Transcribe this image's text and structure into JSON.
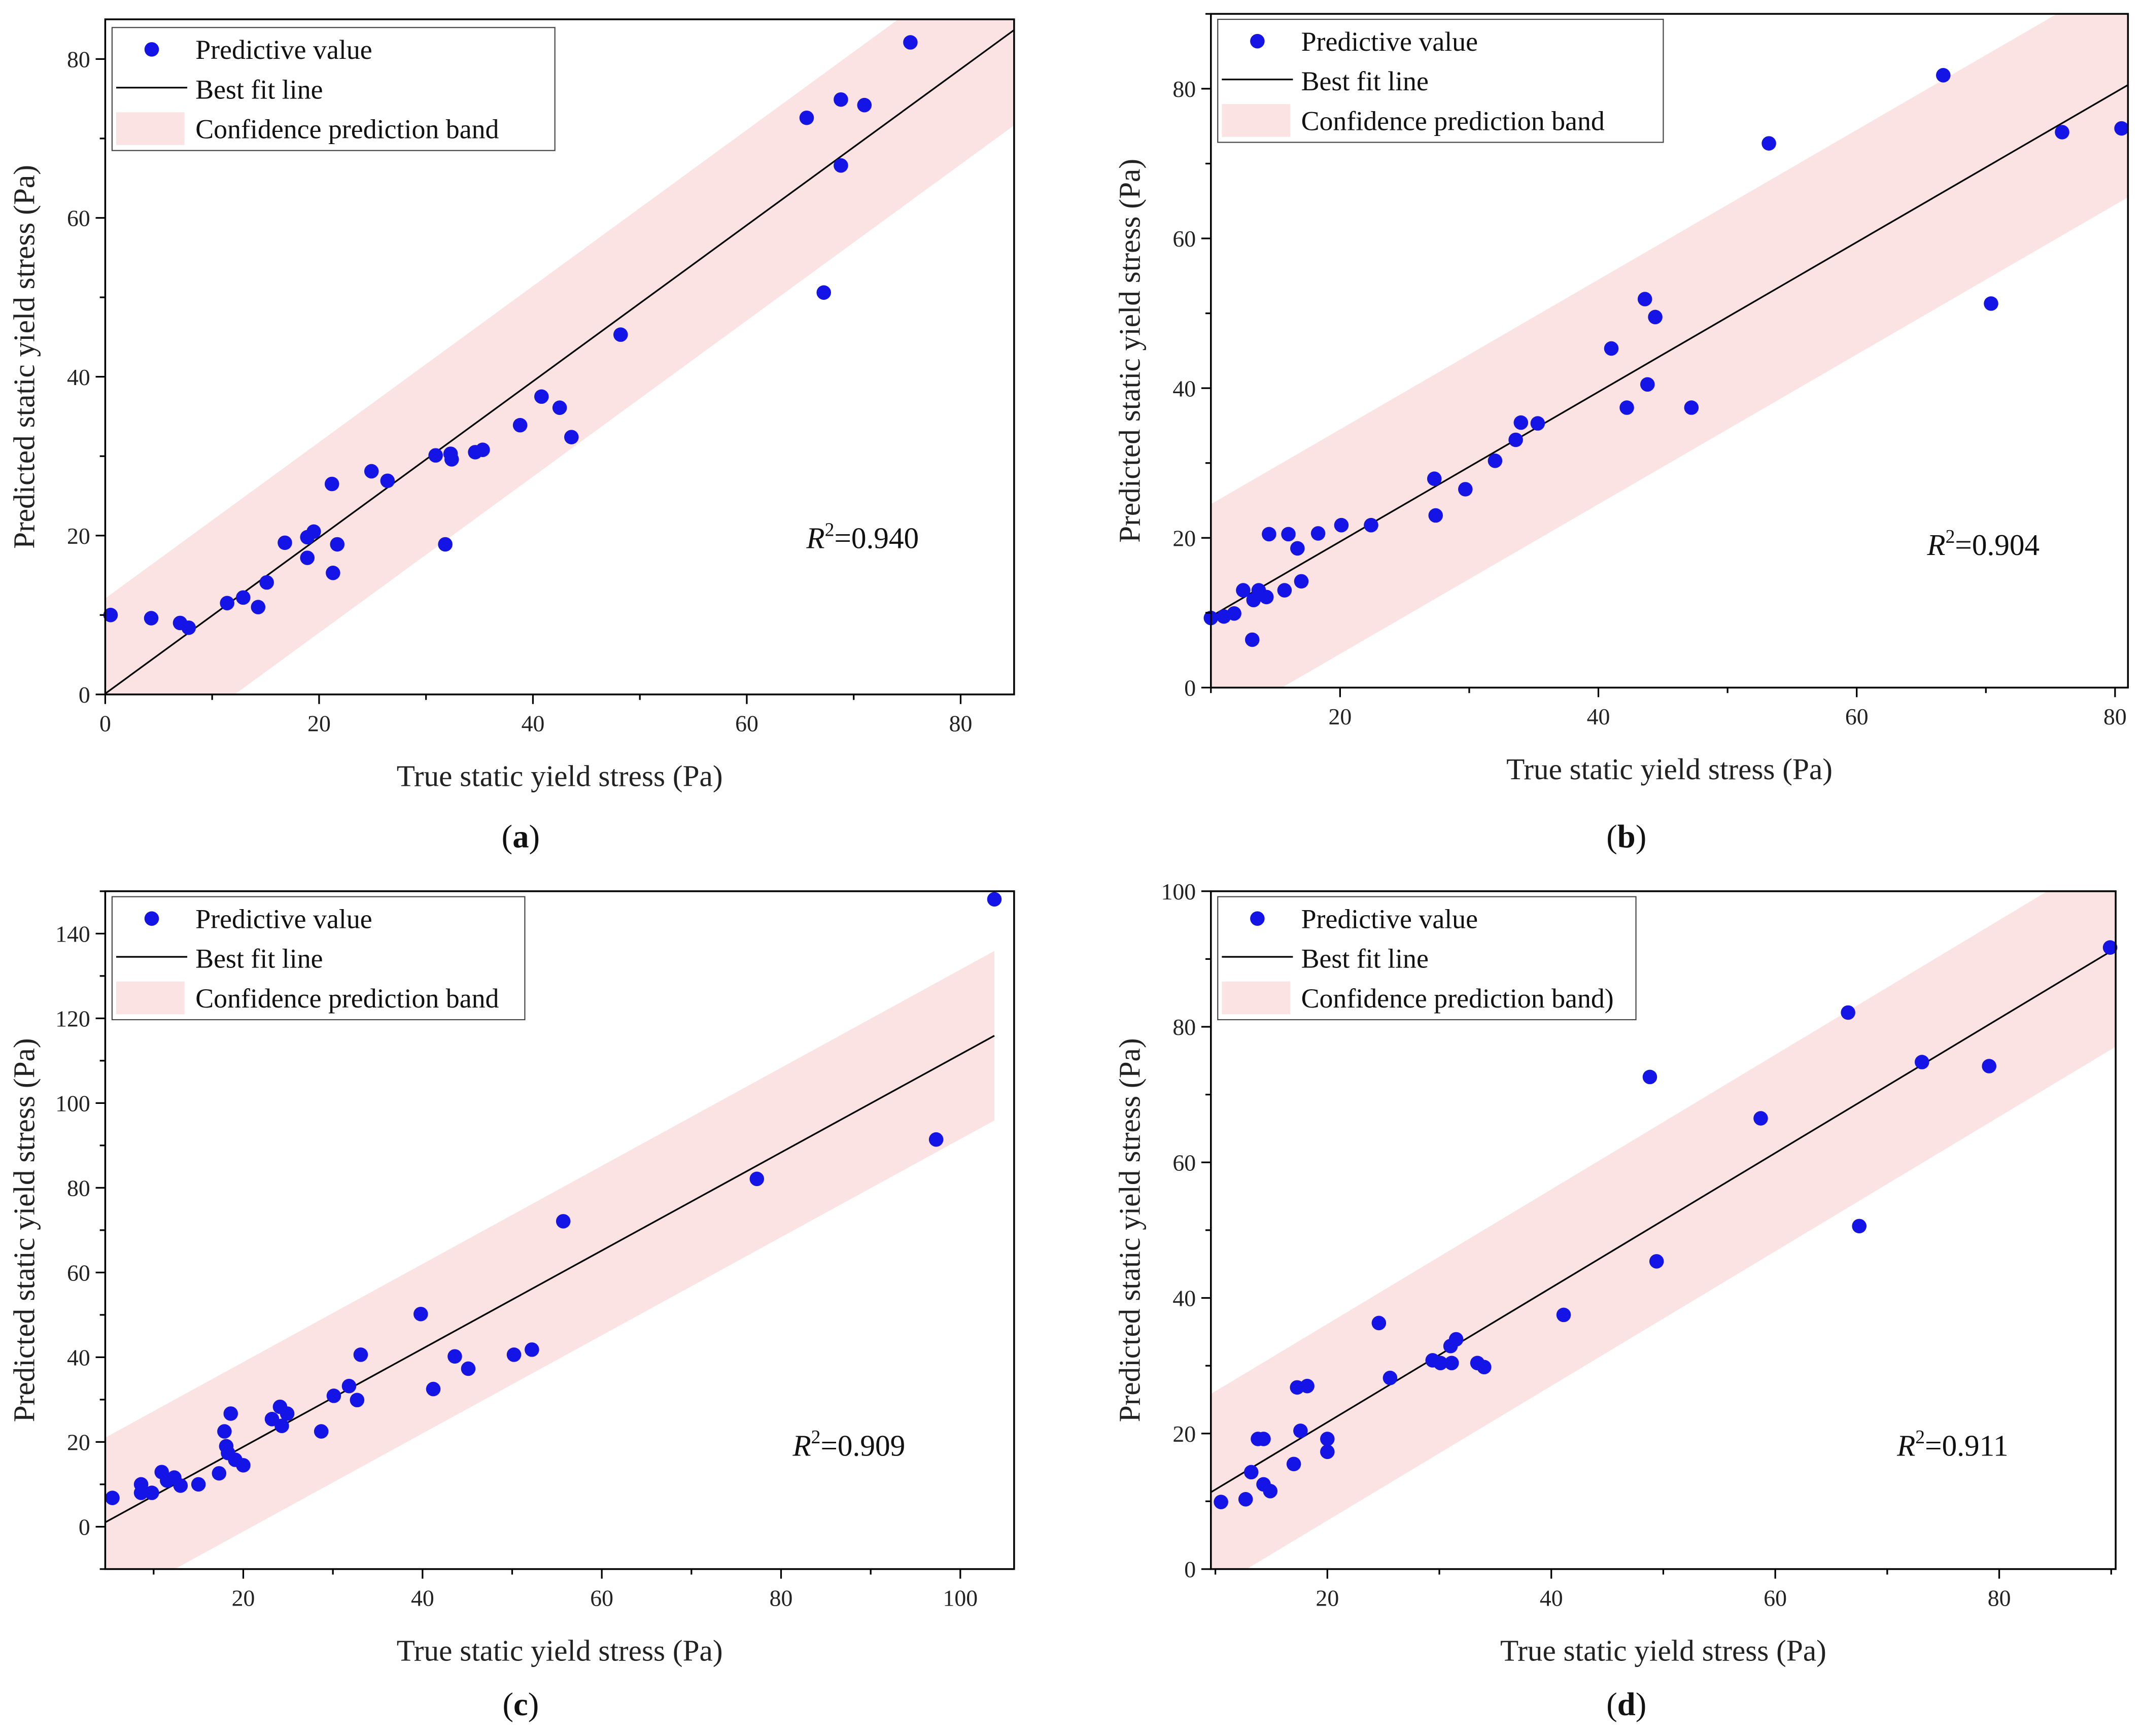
{
  "colors": {
    "point": "#1414e6",
    "line": "#000000",
    "band": "#fce3e3",
    "axis": "#000000"
  },
  "chart_data": [
    {
      "type": "scatter",
      "panel_label": "a",
      "xlabel": "True static yield stress (Pa)",
      "ylabel": "Predicted static yield stress (Pa)",
      "xlim": [
        0,
        85
      ],
      "ylim": [
        0,
        85
      ],
      "xticks": [
        0,
        20,
        40,
        60,
        80
      ],
      "yticks": [
        0,
        20,
        40,
        60,
        80
      ],
      "legend": {
        "placement": "top-left",
        "entries": [
          "Predictive value",
          "Best fit line",
          "Confidence prediction band"
        ]
      },
      "r2_label": "=0.940",
      "fit": {
        "slope": 0.983,
        "intercept": 0.1,
        "band_halfwidth": 12
      },
      "points": [
        [
          0.5,
          10.0
        ],
        [
          4.3,
          9.6
        ],
        [
          7.0,
          9.0
        ],
        [
          7.8,
          8.4
        ],
        [
          11.4,
          11.5
        ],
        [
          12.9,
          12.2
        ],
        [
          14.3,
          11.0
        ],
        [
          15.1,
          14.1
        ],
        [
          16.8,
          19.1
        ],
        [
          18.9,
          17.2
        ],
        [
          18.9,
          19.8
        ],
        [
          19.5,
          20.5
        ],
        [
          21.2,
          26.5
        ],
        [
          21.3,
          15.3
        ],
        [
          21.7,
          18.9
        ],
        [
          24.9,
          28.1
        ],
        [
          26.4,
          26.9
        ],
        [
          30.9,
          30.1
        ],
        [
          32.3,
          30.3
        ],
        [
          32.4,
          29.6
        ],
        [
          31.8,
          18.9
        ],
        [
          34.6,
          30.5
        ],
        [
          35.3,
          30.8
        ],
        [
          38.8,
          33.9
        ],
        [
          40.8,
          37.5
        ],
        [
          42.5,
          36.1
        ],
        [
          43.6,
          32.4
        ],
        [
          48.2,
          45.3
        ],
        [
          65.6,
          72.6
        ],
        [
          67.2,
          50.6
        ],
        [
          68.8,
          74.9
        ],
        [
          68.8,
          66.6
        ],
        [
          71.0,
          74.2
        ],
        [
          75.3,
          82.1
        ]
      ]
    },
    {
      "type": "scatter",
      "panel_label": "b",
      "xlabel": "True static yield stress (Pa)",
      "ylabel": "Predicted static yield stress (Pa)",
      "xlim": [
        10,
        81
      ],
      "ylim": [
        0,
        90
      ],
      "xticks": [
        20,
        40,
        60,
        80
      ],
      "yticks": [
        0,
        20,
        40,
        60,
        80
      ],
      "legend": {
        "placement": "top-left",
        "entries": [
          "Predictive value",
          "Best fit line",
          "Confidence prediction band"
        ]
      },
      "r2_label": "=0.904",
      "fit": {
        "slope": 1.0,
        "intercept": -0.5,
        "band_halfwidth": 15
      },
      "points": [
        [
          10,
          9.3
        ],
        [
          11,
          9.5
        ],
        [
          11.8,
          9.9
        ],
        [
          12.5,
          13.0
        ],
        [
          13.2,
          6.4
        ],
        [
          13.3,
          11.7
        ],
        [
          13.7,
          13.0
        ],
        [
          14.3,
          12.1
        ],
        [
          14.5,
          20.5
        ],
        [
          15.7,
          13.0
        ],
        [
          16.0,
          20.5
        ],
        [
          16.7,
          18.6
        ],
        [
          17.0,
          14.2
        ],
        [
          18.3,
          20.6
        ],
        [
          20.1,
          21.7
        ],
        [
          22.4,
          21.7
        ],
        [
          27.3,
          27.9
        ],
        [
          27.4,
          23.0
        ],
        [
          29.7,
          26.5
        ],
        [
          32.0,
          30.3
        ],
        [
          33.6,
          33.1
        ],
        [
          34.0,
          35.4
        ],
        [
          35.3,
          35.3
        ],
        [
          41.0,
          45.3
        ],
        [
          42.2,
          37.4
        ],
        [
          43.6,
          51.9
        ],
        [
          43.8,
          40.5
        ],
        [
          44.4,
          49.5
        ],
        [
          47.2,
          37.4
        ],
        [
          53.2,
          72.7
        ],
        [
          66.7,
          81.8
        ],
        [
          70.4,
          51.3
        ],
        [
          75.9,
          74.2
        ],
        [
          80.5,
          74.7
        ]
      ]
    },
    {
      "type": "scatter",
      "panel_label": "c",
      "xlabel": "True static yield stress (Pa)",
      "ylabel": "Predicted static yield stress (Pa)",
      "xlim": [
        4.6,
        106
      ],
      "ylim": [
        -10,
        150
      ],
      "xticks": [
        20,
        40,
        60,
        80,
        100
      ],
      "yticks": [
        0,
        20,
        40,
        60,
        80,
        100,
        120,
        140
      ],
      "legend": {
        "placement": "top-left",
        "entries": [
          "Predictive value",
          "Best fit line",
          "Confidence prediction band"
        ]
      },
      "r2_label": "=0.909",
      "fit": {
        "slope": 1.158,
        "intercept": -4.3,
        "band_halfwidth": 20,
        "xrange": [
          4.6,
          103.8
        ]
      },
      "points": [
        [
          5.4,
          6.8
        ],
        [
          8.6,
          10.0
        ],
        [
          8.6,
          8.0
        ],
        [
          9.8,
          8.0
        ],
        [
          10.9,
          12.9
        ],
        [
          11.5,
          10.9
        ],
        [
          12.3,
          11.6
        ],
        [
          13.0,
          9.7
        ],
        [
          15.0,
          10.0
        ],
        [
          17.3,
          12.6
        ],
        [
          17.9,
          22.5
        ],
        [
          18.1,
          19.0
        ],
        [
          18.3,
          17.4
        ],
        [
          18.6,
          26.7
        ],
        [
          19.1,
          15.8
        ],
        [
          20.0,
          14.5
        ],
        [
          23.2,
          25.4
        ],
        [
          24.1,
          28.3
        ],
        [
          24.3,
          23.8
        ],
        [
          24.9,
          26.7
        ],
        [
          28.7,
          22.5
        ],
        [
          30.1,
          30.9
        ],
        [
          31.8,
          33.2
        ],
        [
          32.7,
          29.9
        ],
        [
          33.1,
          40.6
        ],
        [
          39.8,
          50.2
        ],
        [
          41.2,
          32.5
        ],
        [
          43.6,
          40.2
        ],
        [
          45.1,
          37.3
        ],
        [
          50.2,
          40.6
        ],
        [
          52.2,
          41.8
        ],
        [
          55.7,
          72.1
        ],
        [
          77.3,
          82.1
        ],
        [
          97.3,
          91.4
        ],
        [
          103.8,
          148.1
        ]
      ]
    },
    {
      "type": "scatter",
      "panel_label": "d",
      "xlabel": "True static yield stress (Pa)",
      "ylabel": "Predicted static yield stress (Pa)",
      "xlim": [
        9.6,
        90.4
      ],
      "ylim": [
        0,
        100
      ],
      "xticks": [
        20,
        40,
        60,
        80
      ],
      "yticks": [
        0,
        20,
        40,
        60,
        80,
        100
      ],
      "legend": {
        "placement": "top-left",
        "entries": [
          "Predictive value",
          "Best fit line",
          "Confidence prediction band)"
        ]
      },
      "r2_label": "=0.911",
      "fit": {
        "slope": 0.993,
        "intercept": 1.8,
        "band_halfwidth": 14.5
      },
      "points": [
        [
          10.5,
          9.9
        ],
        [
          12.7,
          10.3
        ],
        [
          13.2,
          14.3
        ],
        [
          13.8,
          19.2
        ],
        [
          14.3,
          19.2
        ],
        [
          14.3,
          12.5
        ],
        [
          14.9,
          11.5
        ],
        [
          17.0,
          15.5
        ],
        [
          17.3,
          26.8
        ],
        [
          17.6,
          20.4
        ],
        [
          18.2,
          27.0
        ],
        [
          20.0,
          19.2
        ],
        [
          20.0,
          17.3
        ],
        [
          24.6,
          36.3
        ],
        [
          25.6,
          28.2
        ],
        [
          29.4,
          30.8
        ],
        [
          30.1,
          30.4
        ],
        [
          31.0,
          32.9
        ],
        [
          31.1,
          30.4
        ],
        [
          31.5,
          33.9
        ],
        [
          33.4,
          30.4
        ],
        [
          34.0,
          29.8
        ],
        [
          41.1,
          37.5
        ],
        [
          48.8,
          72.6
        ],
        [
          49.4,
          45.4
        ],
        [
          58.7,
          66.5
        ],
        [
          66.5,
          82.1
        ],
        [
          67.5,
          50.6
        ],
        [
          73.1,
          74.8
        ],
        [
          79.1,
          74.2
        ],
        [
          89.9,
          91.7
        ]
      ]
    }
  ]
}
